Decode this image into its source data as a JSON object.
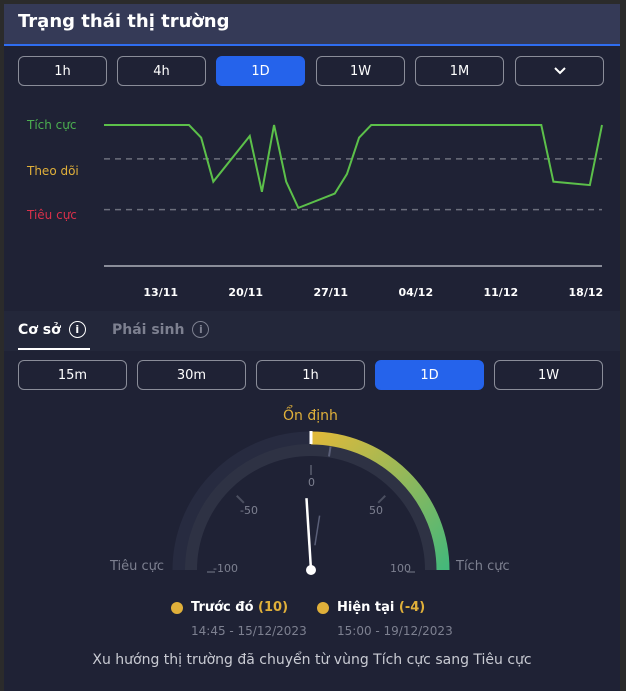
{
  "header": {
    "title": "Trạng thái thị trường"
  },
  "timeframes": {
    "items": [
      "1h",
      "4h",
      "1D",
      "1W",
      "1M"
    ],
    "active": "1D",
    "more_icon": "chevron-down-icon"
  },
  "chart_data": {
    "type": "line",
    "level_labels": [
      "Tích cực",
      "Theo dõi",
      "Tiêu cực"
    ],
    "level_colors": [
      "#4caf50",
      "#e0b03a",
      "#d9304a"
    ],
    "x_ticks": [
      "13/11",
      "20/11",
      "27/11",
      "04/12",
      "11/12",
      "18/12"
    ],
    "x": [
      "08/11",
      "15/11",
      "16/11",
      "17/11",
      "20/11",
      "21/11",
      "22/11",
      "23/11",
      "24/11",
      "27/11",
      "28/11",
      "29/11",
      "30/11",
      "14/12",
      "15/12",
      "18/12",
      "19/12"
    ],
    "y": [
      100,
      100,
      85,
      33,
      87,
      21,
      100,
      33,
      2,
      19,
      42,
      85,
      100,
      100,
      33,
      29,
      100
    ],
    "thresholds": [
      60,
      0
    ],
    "ylim": [
      -100,
      100
    ],
    "line_color": "#5cc04a"
  },
  "market_tabs": {
    "items": [
      "Cơ sở",
      "Phái sinh"
    ],
    "active": "Cơ sở"
  },
  "intervals": {
    "items": [
      "15m",
      "30m",
      "1h",
      "1D",
      "1W"
    ],
    "active": "1D"
  },
  "gauge": {
    "zone_label": "Ổn định",
    "left_label": "Tiêu cực",
    "right_label": "Tích cực",
    "ticks": [
      "-100",
      "-50",
      "0",
      "50",
      "100"
    ],
    "min": -100,
    "max": 100,
    "current": -4,
    "previous": 10,
    "previous_label": "Trước đó",
    "previous_value": "(10)",
    "previous_time": "14:45 - 15/12/2023",
    "current_label": "Hiện tại",
    "current_value": "(-4)",
    "current_time": "15:00 - 19/12/2023",
    "message": "Xu hướng thị trường đã chuyển từ vùng Tích cực sang Tiêu cực"
  }
}
